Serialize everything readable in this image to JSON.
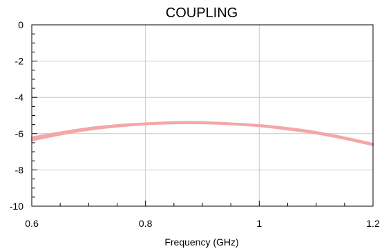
{
  "chart_data": {
    "type": "line",
    "title": "COUPLING",
    "xlabel": "Frequency (GHz)",
    "ylabel": "",
    "xlim": [
      0.6,
      1.2
    ],
    "ylim": [
      -10,
      0
    ],
    "xticks": [
      0.6,
      0.8,
      1,
      1.2
    ],
    "xtick_labels": [
      "0.6",
      "0.8",
      "1",
      "1.2"
    ],
    "yticks": [
      0,
      -2,
      -4,
      -6,
      -8,
      -10
    ],
    "ytick_labels": [
      "0",
      "-2",
      "-4",
      "-6",
      "-8",
      "-10"
    ],
    "grid": true,
    "series_color": "#f4a7a7",
    "series": [
      {
        "x": [
          0.6,
          0.65,
          0.7,
          0.75,
          0.8,
          0.85,
          0.9,
          0.95,
          1.0,
          1.05,
          1.1,
          1.15,
          1.2
        ],
        "values": [
          -6.3,
          -6.0,
          -5.75,
          -5.58,
          -5.47,
          -5.4,
          -5.4,
          -5.45,
          -5.55,
          -5.72,
          -5.95,
          -6.25,
          -6.6
        ]
      },
      {
        "x": [
          0.6,
          0.65,
          0.7,
          0.75,
          0.8,
          0.85,
          0.9,
          0.95,
          1.0,
          1.05,
          1.1,
          1.15,
          1.2
        ],
        "values": [
          -6.2,
          -5.92,
          -5.68,
          -5.52,
          -5.42,
          -5.36,
          -5.36,
          -5.42,
          -5.52,
          -5.68,
          -5.9,
          -6.2,
          -6.55
        ]
      },
      {
        "x": [
          0.6,
          0.65,
          0.7,
          0.75,
          0.8,
          0.85,
          0.9,
          0.95,
          1.0,
          1.05,
          1.1,
          1.15,
          1.2
        ],
        "values": [
          -6.38,
          -6.06,
          -5.8,
          -5.62,
          -5.5,
          -5.44,
          -5.44,
          -5.5,
          -5.6,
          -5.78,
          -6.0,
          -6.3,
          -6.65
        ]
      },
      {
        "x": [
          0.6,
          0.65,
          0.7,
          0.75,
          0.8,
          0.85,
          0.9,
          0.95,
          1.0,
          1.05,
          1.1,
          1.15,
          1.2
        ],
        "values": [
          -6.25,
          -5.96,
          -5.72,
          -5.55,
          -5.45,
          -5.38,
          -5.38,
          -5.44,
          -5.54,
          -5.7,
          -5.93,
          -6.23,
          -6.58
        ]
      }
    ]
  }
}
